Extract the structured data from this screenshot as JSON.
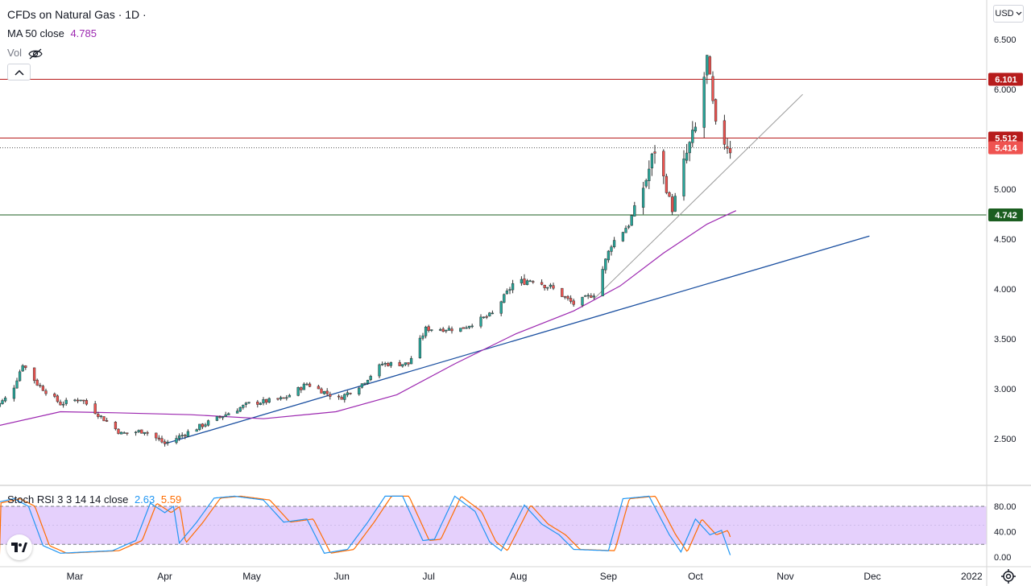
{
  "header": {
    "symbol_title": "CFDs on Natural Gas · 1D ·",
    "ma_label": "MA 50 close",
    "ma_value": "4.785",
    "vol_label": "Vol",
    "currency": "USD"
  },
  "oscillator": {
    "label": "Stoch RSI 3 3 14 14 close",
    "k_value": "2.63",
    "d_value": "5.59",
    "axis_ticks": [
      "80.00",
      "40.00",
      "0.00"
    ]
  },
  "colors": {
    "up": "#26a69a",
    "down": "#ef5350",
    "ma": "#9c27b0",
    "resistance": "#b71c1c",
    "support": "#1b5e20",
    "trend_blue": "#1a4fa0",
    "rsi_k": "#2196f3",
    "rsi_d": "#ff6d00",
    "rsi_band": "#e1c8fb",
    "last_price": "#ef5350"
  },
  "icons": [
    "eye-off-icon",
    "chevron-up-icon",
    "tradingview-logo-icon",
    "gear-icon",
    "chevron-down-icon"
  ],
  "chart_data": {
    "type": "candlestick",
    "title": "CFDs on Natural Gas · 1D ·",
    "y_axis_ticks": [
      "6.500",
      "6.000",
      "5.000",
      "4.500",
      "4.000",
      "3.500",
      "3.000",
      "2.500"
    ],
    "x_axis_ticks": [
      "Mar",
      "Apr",
      "May",
      "Jun",
      "Jul",
      "Aug",
      "Sep",
      "Oct",
      "Nov",
      "Dec",
      "2022"
    ],
    "ylim": [
      2.1,
      6.9
    ],
    "price_labels": [
      {
        "value": 6.101,
        "text": "6.101",
        "kind": "resistance"
      },
      {
        "value": 5.512,
        "text": "5.512",
        "kind": "resistance"
      },
      {
        "value": 5.414,
        "text": "5.414",
        "kind": "last_price"
      },
      {
        "value": 4.742,
        "text": "4.742",
        "kind": "support"
      }
    ],
    "ma_50_last": 4.785,
    "trend_lines": [
      {
        "name": "rising support (blue)",
        "from": [
          "2021-04-01",
          2.45
        ],
        "to": [
          "2021-11-30",
          4.53
        ]
      },
      {
        "name": "rising support (thin)",
        "from": [
          "2021-08-27",
          3.9
        ],
        "to": [
          "2021-11-07",
          5.95
        ]
      }
    ],
    "anchors": [
      [
        "2021-02-01",
        2.8
      ],
      [
        "2021-02-07",
        2.95
      ],
      [
        "2021-02-11",
        3.25
      ],
      [
        "2021-02-16",
        3.05
      ],
      [
        "2021-02-24",
        2.85
      ],
      [
        "2021-03-03",
        2.9
      ],
      [
        "2021-03-10",
        2.72
      ],
      [
        "2021-03-17",
        2.55
      ],
      [
        "2021-03-25",
        2.58
      ],
      [
        "2021-04-01",
        2.45
      ],
      [
        "2021-04-15",
        2.65
      ],
      [
        "2021-04-30",
        2.85
      ],
      [
        "2021-05-12",
        2.9
      ],
      [
        "2021-05-20",
        3.05
      ],
      [
        "2021-05-31",
        2.9
      ],
      [
        "2021-06-08",
        3.05
      ],
      [
        "2021-06-15",
        3.25
      ],
      [
        "2021-06-24",
        3.25
      ],
      [
        "2021-06-30",
        3.6
      ],
      [
        "2021-07-12",
        3.6
      ],
      [
        "2021-07-23",
        3.75
      ],
      [
        "2021-07-30",
        4.05
      ],
      [
        "2021-08-06",
        4.1
      ],
      [
        "2021-08-13",
        4.0
      ],
      [
        "2021-08-20",
        3.85
      ],
      [
        "2021-08-27",
        3.95
      ],
      [
        "2021-09-02",
        4.45
      ],
      [
        "2021-09-08",
        4.65
      ],
      [
        "2021-09-14",
        5.1
      ],
      [
        "2021-09-17",
        5.4
      ],
      [
        "2021-09-23",
        4.8
      ],
      [
        "2021-09-28",
        5.35
      ],
      [
        "2021-10-01",
        5.6
      ],
      [
        "2021-10-05",
        6.3
      ],
      [
        "2021-10-08",
        5.6
      ],
      [
        "2021-10-13",
        5.41
      ]
    ],
    "ma_50_series": [
      [
        "2021-02-01",
        2.62
      ],
      [
        "2021-02-24",
        2.77
      ],
      [
        "2021-03-15",
        2.76
      ],
      [
        "2021-04-10",
        2.74
      ],
      [
        "2021-05-05",
        2.7
      ],
      [
        "2021-05-30",
        2.77
      ],
      [
        "2021-06-20",
        2.94
      ],
      [
        "2021-07-10",
        3.25
      ],
      [
        "2021-07-31",
        3.55
      ],
      [
        "2021-08-20",
        3.78
      ],
      [
        "2021-09-05",
        4.03
      ],
      [
        "2021-09-20",
        4.36
      ],
      [
        "2021-10-05",
        4.65
      ],
      [
        "2021-10-15",
        4.785
      ]
    ],
    "stoch_rsi_range": [
      0,
      100
    ],
    "stoch_rsi_band": [
      20,
      80
    ],
    "stoch_rsi_last": {
      "k": 2.63,
      "d": 5.59
    },
    "stoch_rsi_turns": [
      [
        "2021-02-01",
        85
      ],
      [
        "2021-02-08",
        92
      ],
      [
        "2021-02-13",
        80
      ],
      [
        "2021-02-18",
        18
      ],
      [
        "2021-02-24",
        6
      ],
      [
        "2021-03-05",
        8
      ],
      [
        "2021-03-14",
        10
      ],
      [
        "2021-03-22",
        26
      ],
      [
        "2021-03-27",
        85
      ],
      [
        "2021-04-01",
        70
      ],
      [
        "2021-04-04",
        80
      ],
      [
        "2021-04-06",
        22
      ],
      [
        "2021-04-12",
        55
      ],
      [
        "2021-04-18",
        93
      ],
      [
        "2021-04-25",
        96
      ],
      [
        "2021-05-05",
        90
      ],
      [
        "2021-05-12",
        55
      ],
      [
        "2021-05-20",
        60
      ],
      [
        "2021-05-26",
        6
      ],
      [
        "2021-06-03",
        12
      ],
      [
        "2021-06-10",
        55
      ],
      [
        "2021-06-16",
        96
      ],
      [
        "2021-06-22",
        96
      ],
      [
        "2021-06-29",
        26
      ],
      [
        "2021-07-03",
        28
      ],
      [
        "2021-07-10",
        96
      ],
      [
        "2021-07-17",
        72
      ],
      [
        "2021-07-22",
        24
      ],
      [
        "2021-07-26",
        10
      ],
      [
        "2021-08-03",
        82
      ],
      [
        "2021-08-09",
        52
      ],
      [
        "2021-08-15",
        35
      ],
      [
        "2021-08-20",
        12
      ],
      [
        "2021-09-01",
        10
      ],
      [
        "2021-09-06",
        92
      ],
      [
        "2021-09-15",
        96
      ],
      [
        "2021-09-22",
        35
      ],
      [
        "2021-09-26",
        8
      ],
      [
        "2021-10-01",
        60
      ],
      [
        "2021-10-06",
        35
      ],
      [
        "2021-10-10",
        42
      ],
      [
        "2021-10-13",
        3
      ]
    ]
  }
}
